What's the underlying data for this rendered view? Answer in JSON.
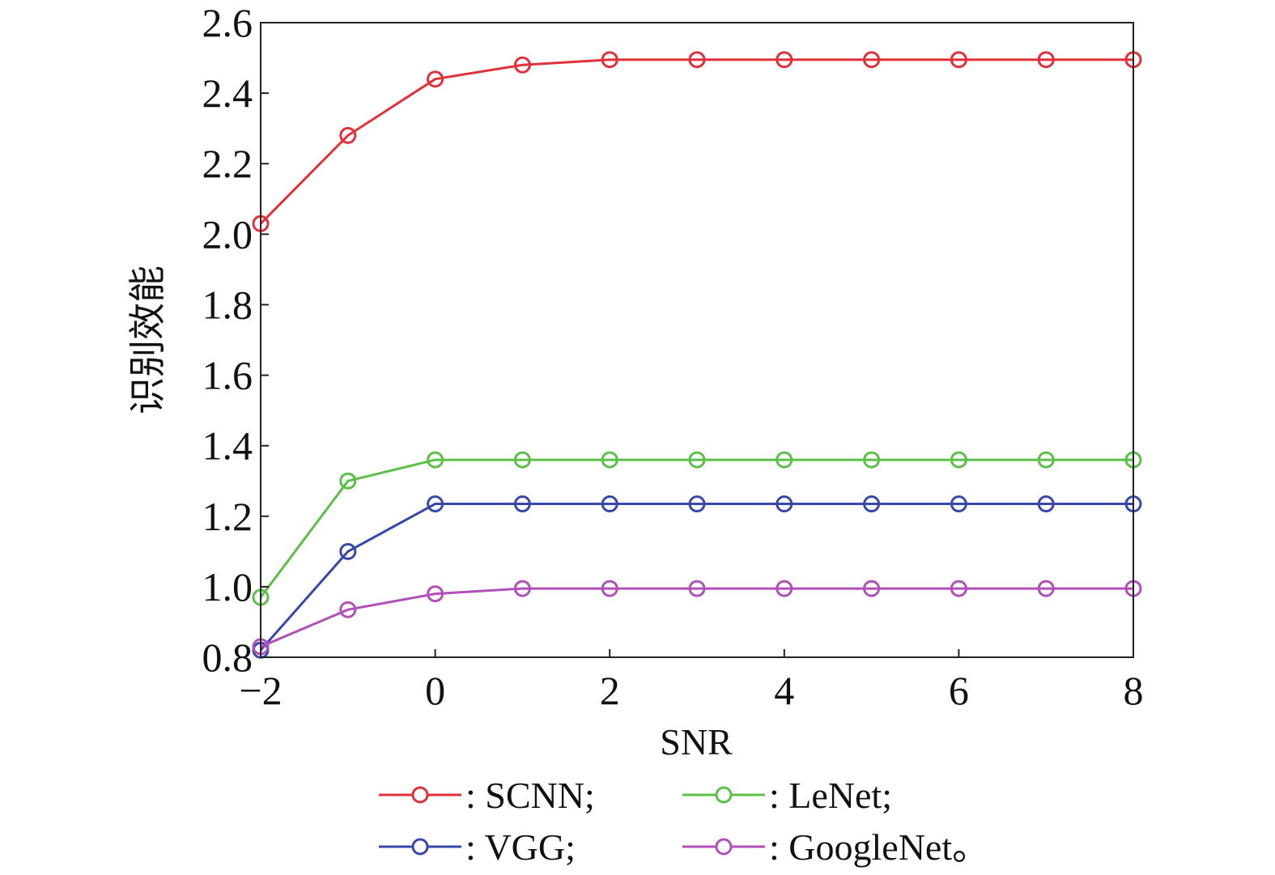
{
  "chart_data": {
    "type": "line",
    "title": "",
    "xlabel": "SNR",
    "ylabel": "识别效能",
    "xlim": [
      -2,
      8
    ],
    "ylim": [
      0.8,
      2.6
    ],
    "xticks": [
      -2,
      0,
      2,
      4,
      6,
      8
    ],
    "xtick_labels": [
      "−2",
      "0",
      "2",
      "4",
      "6",
      "8"
    ],
    "yticks": [
      0.8,
      1.0,
      1.2,
      1.4,
      1.6,
      1.8,
      2.0,
      2.2,
      2.4,
      2.6
    ],
    "ytick_labels": [
      "0.8",
      "1.0",
      "1.2",
      "1.4",
      "1.6",
      "1.8",
      "2.0",
      "2.2",
      "2.4",
      "2.6"
    ],
    "grid": false,
    "legend_position": "bottom",
    "x": [
      -2,
      -1,
      0,
      1,
      2,
      3,
      4,
      5,
      6,
      7,
      8
    ],
    "series": [
      {
        "name": "SCNN",
        "legend_label": ": SCNN;",
        "color": "#e0303a",
        "marker": "circle-open",
        "values": [
          2.03,
          2.28,
          2.44,
          2.48,
          2.495,
          2.495,
          2.495,
          2.495,
          2.495,
          2.495,
          2.495
        ]
      },
      {
        "name": "LeNet",
        "legend_label": ": LeNet;",
        "color": "#5cc048",
        "marker": "circle-open",
        "values": [
          0.97,
          1.3,
          1.36,
          1.36,
          1.36,
          1.36,
          1.36,
          1.36,
          1.36,
          1.36,
          1.36
        ]
      },
      {
        "name": "VGG",
        "legend_label": ": VGG;",
        "color": "#3848a8",
        "marker": "circle-open",
        "values": [
          0.82,
          1.1,
          1.235,
          1.235,
          1.235,
          1.235,
          1.235,
          1.235,
          1.235,
          1.235,
          1.235
        ]
      },
      {
        "name": "GoogleNet",
        "legend_label": ": GoogleNet。",
        "color": "#b050b8",
        "marker": "circle-open",
        "values": [
          0.83,
          0.935,
          0.98,
          0.995,
          0.995,
          0.995,
          0.995,
          0.995,
          0.995,
          0.995,
          0.995
        ]
      }
    ]
  }
}
